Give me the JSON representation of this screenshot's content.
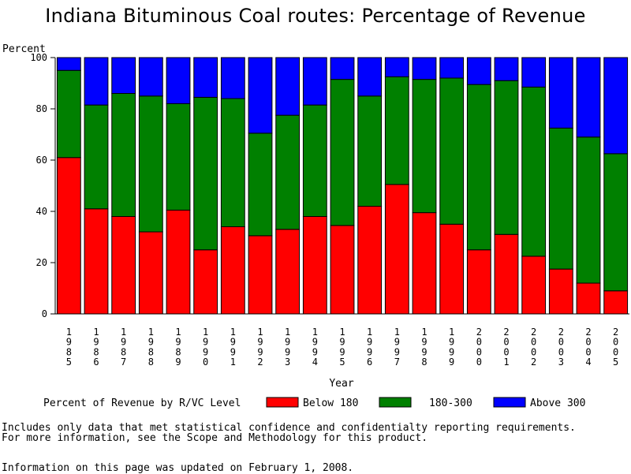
{
  "chart_data": {
    "type": "bar",
    "stacked": true,
    "title": "Indiana Bituminous Coal routes: Percentage of Revenue",
    "ylabel": "Percent",
    "xlabel": "Year",
    "ylim": [
      0,
      100
    ],
    "yticks": [
      "0",
      "20",
      "40",
      "60",
      "80",
      "100"
    ],
    "categories": [
      "1985",
      "1986",
      "1987",
      "1988",
      "1989",
      "1990",
      "1991",
      "1992",
      "1993",
      "1994",
      "1995",
      "1996",
      "1997",
      "1998",
      "1999",
      "2000",
      "2001",
      "2002",
      "2003",
      "2004",
      "2005"
    ],
    "series": [
      {
        "name": "Below 180",
        "color": "#ff0000",
        "values": [
          61,
          41,
          38,
          32,
          40.5,
          25,
          34,
          30.5,
          33,
          38,
          34.5,
          42,
          50.5,
          39.5,
          35,
          25,
          31,
          22.5,
          17.5,
          12,
          9
        ]
      },
      {
        "name": "180-300",
        "color": "#008000",
        "values": [
          34,
          40.5,
          48,
          53,
          41.5,
          59.5,
          50,
          40,
          44.5,
          43.5,
          57,
          43,
          42,
          52,
          57,
          64.5,
          60,
          66,
          55,
          57,
          53.5
        ]
      },
      {
        "name": "Above 300",
        "color": "#0000ff",
        "values": [
          5,
          18.5,
          14,
          15,
          18,
          15.5,
          16,
          29.5,
          22.5,
          18.5,
          8.5,
          15,
          7.5,
          8.5,
          8,
          10.5,
          9,
          11.5,
          27.5,
          31,
          37.5
        ]
      }
    ],
    "legend_title": "Percent of Revenue by R/VC Level",
    "legend_position": "bottom"
  },
  "footer": {
    "note_line1": "Includes only data that met statistical confidence and confidentialty reporting requirements.",
    "note_line2": "For more information, see the Scope and Methodology for this product.",
    "updated": "Information on this page was updated on February 1, 2008."
  }
}
